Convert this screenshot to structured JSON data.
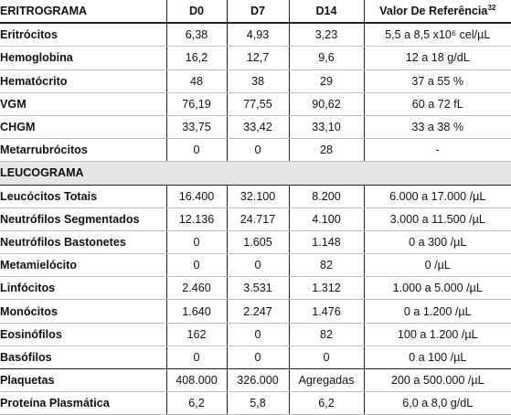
{
  "header": {
    "col0": "ERITROGRAMA",
    "col1": "D0",
    "col2": "D7",
    "col3": "D14",
    "col4": "Valor De Referência",
    "col4_sup": "32"
  },
  "eritrograma_rows": [
    {
      "name": "Eritrócitos",
      "d0": "6,38",
      "d7": "4,93",
      "d14": "3,23",
      "ref": "5,5 a 8,5 x10⁶ cel/µL"
    },
    {
      "name": "Hemoglobina",
      "d0": "16,2",
      "d7": "12,7",
      "d14": "9,6",
      "ref": "12 a 18 g/dL"
    },
    {
      "name": "Hematócrito",
      "d0": "48",
      "d7": "38",
      "d14": "29",
      "ref": "37 a 55 %"
    },
    {
      "name": "VGM",
      "d0": "76,19",
      "d7": "77,55",
      "d14": "90,62",
      "ref": "60 a 72 fL"
    },
    {
      "name": "CHGM",
      "d0": "33,75",
      "d7": "33,42",
      "d14": "33,10",
      "ref": "33 a 38 %"
    },
    {
      "name": "Metarrubrócitos",
      "d0": "0",
      "d7": "0",
      "d14": "28",
      "ref": "-"
    }
  ],
  "leucograma_title": "LEUCOGRAMA",
  "leucograma_rows": [
    {
      "name": "Leucócitos Totais",
      "d0": "16.400",
      "d7": "32.100",
      "d14": "8.200",
      "ref": "6.000 a 17.000 /µL"
    },
    {
      "name": "Neutrófilos Segmentados",
      "d0": "12.136",
      "d7": "24.717",
      "d14": "4.100",
      "ref": "3.000 a 11.500 /µL"
    },
    {
      "name": "Neutrófilos Bastonetes",
      "d0": "0",
      "d7": "1.605",
      "d14": "1.148",
      "ref": "0 a 300 /µL"
    },
    {
      "name": "Metamielócito",
      "d0": "0",
      "d7": "0",
      "d14": "82",
      "ref": "0 /µL"
    },
    {
      "name": "Linfócitos",
      "d0": "2.460",
      "d7": "3.531",
      "d14": "1.312",
      "ref": "1.000 a 5.000 /µL"
    },
    {
      "name": "Monócitos",
      "d0": "1.640",
      "d7": "2.247",
      "d14": "1.476",
      "ref": "0 a 1.200 /µL"
    },
    {
      "name": "Eosinófilos",
      "d0": "162",
      "d7": "0",
      "d14": "82",
      "ref": "100 a 1.200 /µL"
    },
    {
      "name": "Basófilos",
      "d0": "0",
      "d7": "0",
      "d14": "0",
      "ref": "0 a 100 /µL"
    }
  ],
  "other_rows": [
    {
      "name": "Plaquetas",
      "d0": "408.000",
      "d7": "326.000",
      "d14": "Agregadas",
      "ref": "200 a 500.000 /µL"
    },
    {
      "name": "Proteína Plasmática",
      "d0": "6,2",
      "d7": "5,8",
      "d14": "6,2",
      "ref": "6,0 a 8,0 g/dL"
    }
  ]
}
